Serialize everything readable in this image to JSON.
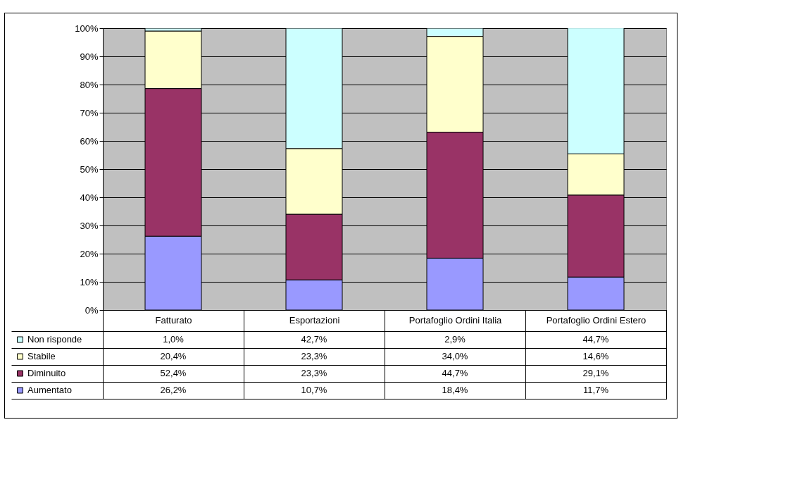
{
  "chart_data": {
    "type": "bar",
    "stacked": true,
    "categories": [
      "Fatturato",
      "Esportazioni",
      "Portafoglio Ordini Italia",
      "Portafoglio Ordini Estero"
    ],
    "series": [
      {
        "name": "Aumentato",
        "color": "#9999ff",
        "values": [
          26.2,
          10.7,
          18.4,
          11.7
        ],
        "value_labels": [
          "26,2%",
          "10,7%",
          "18,4%",
          "11,7%"
        ]
      },
      {
        "name": "Diminuito",
        "color": "#993366",
        "values": [
          52.4,
          23.3,
          44.7,
          29.1
        ],
        "value_labels": [
          "52,4%",
          "23,3%",
          "44,7%",
          "29,1%"
        ]
      },
      {
        "name": "Stabile",
        "color": "#ffffcc",
        "values": [
          20.4,
          23.3,
          34.0,
          14.6
        ],
        "value_labels": [
          "20,4%",
          "23,3%",
          "34,0%",
          "14,6%"
        ]
      },
      {
        "name": "Non risponde",
        "color": "#ccffff",
        "values": [
          1.0,
          42.7,
          2.9,
          44.7
        ],
        "value_labels": [
          "1,0%",
          "42,7%",
          "2,9%",
          "44,7%"
        ]
      }
    ],
    "ylim": [
      0,
      100
    ],
    "yticks": [
      {
        "value": 0,
        "label": "0%"
      },
      {
        "value": 10,
        "label": "10%"
      },
      {
        "value": 20,
        "label": "20%"
      },
      {
        "value": 30,
        "label": "30%"
      },
      {
        "value": 40,
        "label": "40%"
      },
      {
        "value": 50,
        "label": "50%"
      },
      {
        "value": 60,
        "label": "60%"
      },
      {
        "value": 70,
        "label": "70%"
      },
      {
        "value": 80,
        "label": "80%"
      },
      {
        "value": 90,
        "label": "90%"
      },
      {
        "value": 100,
        "label": "100%"
      }
    ],
    "grid": "y",
    "legend": "bottom left"
  }
}
